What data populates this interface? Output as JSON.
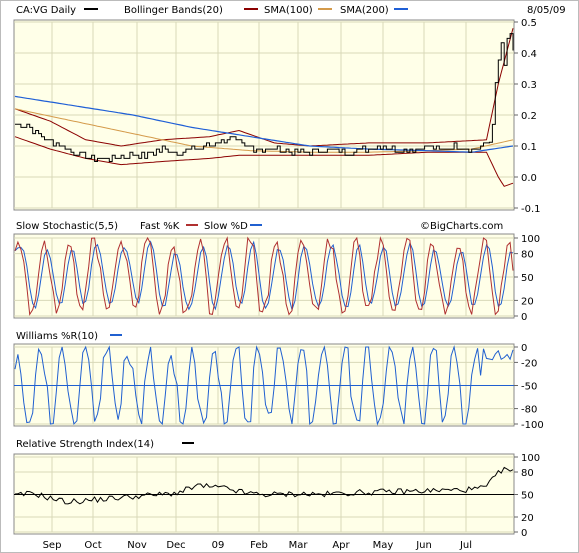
{
  "header": {
    "symbol_label": "CA:VG Daily",
    "bb_label": "Bollinger Bands(20)",
    "sma100_label": "SMA(100)",
    "sma200_label": "SMA(200)",
    "date": "8/05/09",
    "watermark": "©BigCharts.com"
  },
  "colors": {
    "panel_bg": "#ffffe8",
    "grid": "#d8d8b8",
    "price": "#000000",
    "bollinger": "#8b0000",
    "sma100": "#d49a4a",
    "sma200": "#1f5fd6",
    "fast_k": "#b03030",
    "slow_d": "#2060d0",
    "williams": "#2060d0",
    "rsi": "#000000"
  },
  "months": [
    "Sep",
    "Oct",
    "Nov",
    "Dec",
    "09",
    "Feb",
    "Mar",
    "Apr",
    "May",
    "Jun",
    "Jul"
  ],
  "chart_data": [
    {
      "type": "line",
      "title": "CA:VG Daily",
      "series_names": [
        "CA:VG Daily",
        "Bollinger Bands(20)",
        "SMA(100)",
        "SMA(200)"
      ],
      "ylim": [
        -0.1,
        0.5
      ],
      "yticks": [
        "0.5",
        "0.4",
        "0.3",
        "0.2",
        "0.1",
        "0.0",
        "-0.1"
      ],
      "x_months": [
        "Sep",
        "Oct",
        "Nov",
        "Dec",
        "09",
        "Feb",
        "Mar",
        "Apr",
        "May",
        "Jun",
        "Jul"
      ],
      "price_keypoints": [
        [
          0,
          0.17
        ],
        [
          4,
          0.17
        ],
        [
          6,
          0.15
        ],
        [
          10,
          0.12
        ],
        [
          14,
          0.11
        ],
        [
          20,
          0.08
        ],
        [
          26,
          0.06
        ],
        [
          32,
          0.06
        ],
        [
          38,
          0.07
        ],
        [
          44,
          0.07
        ],
        [
          50,
          0.09
        ],
        [
          55,
          0.08
        ],
        [
          60,
          0.09
        ],
        [
          66,
          0.1
        ],
        [
          70,
          0.12
        ],
        [
          74,
          0.12
        ],
        [
          78,
          0.1
        ],
        [
          82,
          0.09
        ],
        [
          88,
          0.09
        ],
        [
          94,
          0.08
        ],
        [
          100,
          0.08
        ],
        [
          106,
          0.09
        ],
        [
          112,
          0.08
        ],
        [
          118,
          0.09
        ],
        [
          124,
          0.1
        ],
        [
          130,
          0.09
        ],
        [
          136,
          0.09
        ],
        [
          140,
          0.1
        ],
        [
          144,
          0.09
        ],
        [
          150,
          0.1
        ],
        [
          156,
          0.09
        ],
        [
          160,
          0.11
        ],
        [
          162,
          0.16
        ],
        [
          163,
          0.28
        ],
        [
          164,
          0.38
        ],
        [
          165,
          0.41
        ],
        [
          166,
          0.36
        ],
        [
          167,
          0.43
        ],
        [
          168,
          0.46
        ],
        [
          169,
          0.4
        ]
      ],
      "sma200_keypoints": [
        [
          0,
          0.26
        ],
        [
          20,
          0.23
        ],
        [
          40,
          0.2
        ],
        [
          60,
          0.16
        ],
        [
          80,
          0.13
        ],
        [
          100,
          0.1
        ],
        [
          120,
          0.09
        ],
        [
          140,
          0.085
        ],
        [
          155,
          0.08
        ],
        [
          169,
          0.1
        ]
      ],
      "sma100_keypoints": [
        [
          0,
          0.22
        ],
        [
          20,
          0.18
        ],
        [
          40,
          0.14
        ],
        [
          60,
          0.1
        ],
        [
          80,
          0.085
        ],
        [
          100,
          0.08
        ],
        [
          120,
          0.08
        ],
        [
          140,
          0.085
        ],
        [
          155,
          0.09
        ],
        [
          169,
          0.12
        ]
      ],
      "bb_upper_keypoints": [
        [
          0,
          0.22
        ],
        [
          12,
          0.18
        ],
        [
          24,
          0.12
        ],
        [
          36,
          0.1
        ],
        [
          50,
          0.12
        ],
        [
          66,
          0.13
        ],
        [
          76,
          0.15
        ],
        [
          88,
          0.11
        ],
        [
          100,
          0.1
        ],
        [
          120,
          0.11
        ],
        [
          140,
          0.11
        ],
        [
          160,
          0.12
        ],
        [
          164,
          0.3
        ],
        [
          169,
          0.48
        ]
      ],
      "bb_lower_keypoints": [
        [
          0,
          0.13
        ],
        [
          12,
          0.09
        ],
        [
          24,
          0.06
        ],
        [
          36,
          0.04
        ],
        [
          50,
          0.05
        ],
        [
          66,
          0.06
        ],
        [
          76,
          0.07
        ],
        [
          88,
          0.07
        ],
        [
          100,
          0.07
        ],
        [
          120,
          0.07
        ],
        [
          140,
          0.08
        ],
        [
          160,
          0.08
        ],
        [
          164,
          0.0
        ],
        [
          166,
          -0.03
        ],
        [
          169,
          -0.02
        ]
      ]
    },
    {
      "type": "line",
      "title": "Slow Stochastic(5,5)",
      "series_names": [
        "Fast %K",
        "Slow %D"
      ],
      "ylim": [
        0,
        100
      ],
      "yticks": [
        "100",
        "80",
        "50",
        "20",
        "0"
      ]
    },
    {
      "type": "line",
      "title": "Williams %R(10)",
      "ylim": [
        -100,
        0
      ],
      "yticks": [
        "0",
        "-20",
        "-50",
        "-80",
        "-100"
      ]
    },
    {
      "type": "line",
      "title": "Relative Strength Index(14)",
      "ylim": [
        0,
        100
      ],
      "yticks": [
        "100",
        "80",
        "50",
        "20",
        "0"
      ]
    }
  ],
  "panels": {
    "stoch_title": "Slow Stochastic(5,5)",
    "stoch_k_label": "Fast %K",
    "stoch_d_label": "Slow %D",
    "williams_title": "Williams %R(10)",
    "rsi_title": "Relative Strength Index(14)"
  }
}
